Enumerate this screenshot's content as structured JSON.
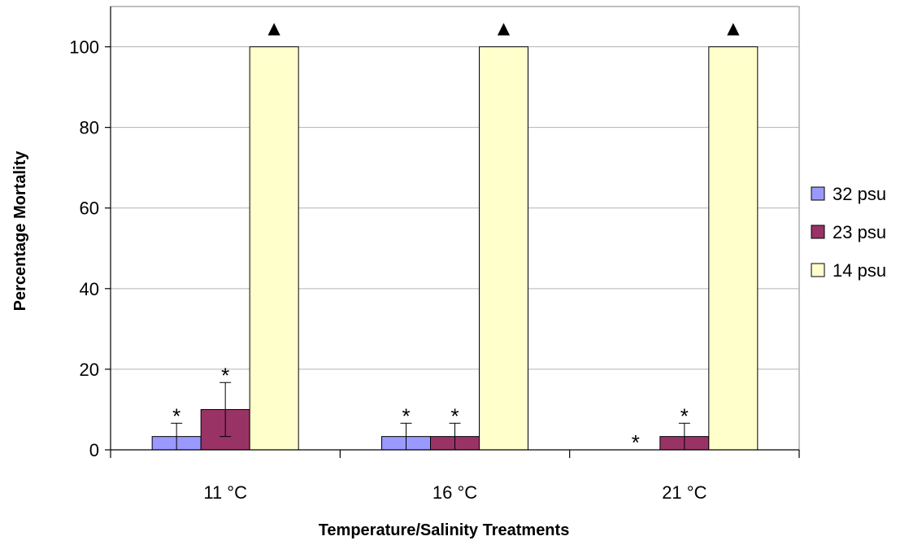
{
  "chart_data": {
    "type": "bar",
    "title": "",
    "xlabel": "Temperature/Salinity Treatments",
    "ylabel": "Percentage Mortality",
    "categories": [
      "11 °C",
      "16 °C",
      "21 °C"
    ],
    "ylim": [
      0,
      110
    ],
    "yticks": [
      0,
      20,
      40,
      60,
      80,
      100
    ],
    "grid": true,
    "legend_position": "right",
    "series": [
      {
        "name": "32 psu",
        "color": "#9999ff",
        "values": [
          3.3,
          3.3,
          0
        ],
        "errors": [
          3.3,
          3.3,
          0
        ],
        "markers": [
          "*",
          "*",
          "*"
        ]
      },
      {
        "name": "23 psu",
        "color": "#993366",
        "values": [
          10,
          3.3,
          3.3
        ],
        "errors": [
          6.7,
          3.3,
          3.3
        ],
        "markers": [
          "*",
          "*",
          "*"
        ]
      },
      {
        "name": "14 psu",
        "color": "#ffffcc",
        "values": [
          100,
          100,
          100
        ],
        "errors": [
          0,
          0,
          0
        ],
        "markers": [
          "▲",
          "▲",
          "▲"
        ]
      }
    ]
  }
}
